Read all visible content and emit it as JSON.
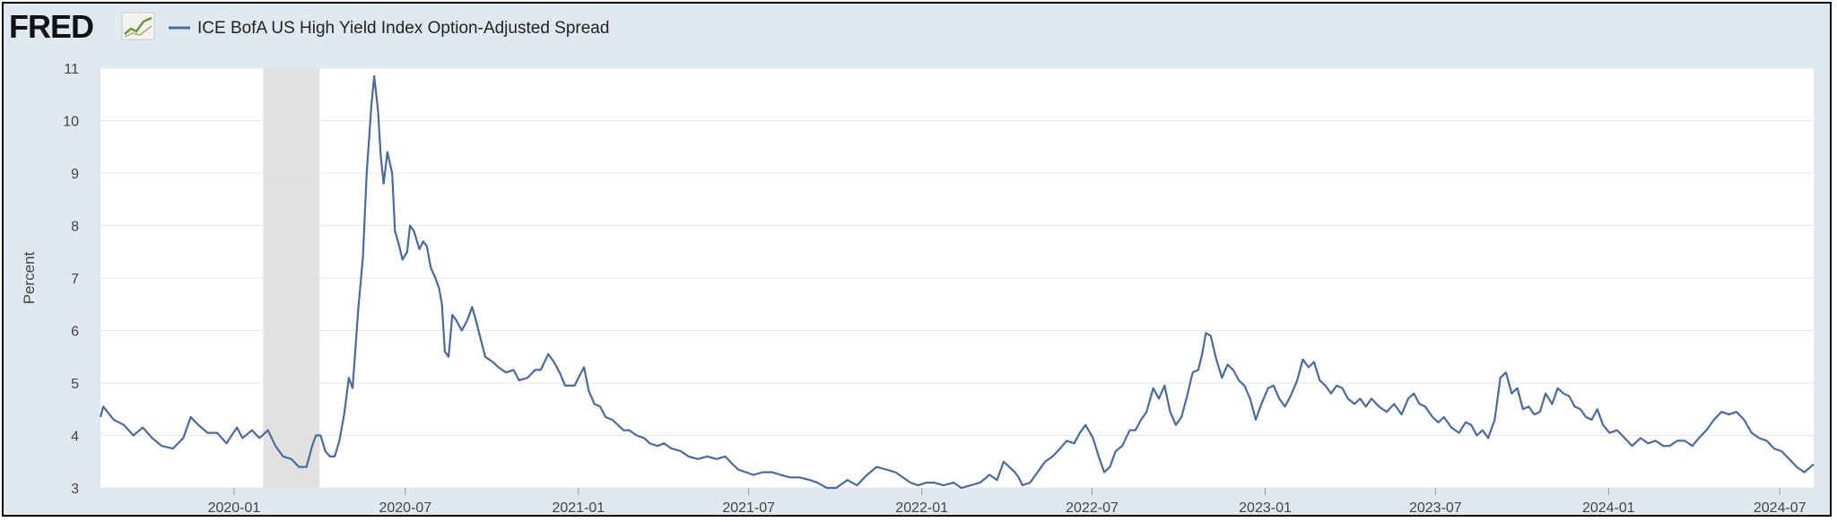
{
  "logo": {
    "text": "FRED"
  },
  "chart_data": {
    "type": "line",
    "title": "",
    "ylabel": "Percent",
    "xlabel": "",
    "ylim": [
      3,
      11
    ],
    "xlim": [
      "2019-08-12",
      "2024-08-06"
    ],
    "yticks": [
      3,
      4,
      5,
      6,
      7,
      8,
      9,
      10,
      11
    ],
    "xticks": [
      "2020-01",
      "2020-07",
      "2021-01",
      "2021-07",
      "2022-01",
      "2022-07",
      "2023-01",
      "2023-07",
      "2024-01",
      "2024-07"
    ],
    "grid": true,
    "legend": "top-left",
    "recession": {
      "start": "2020-02",
      "end": "2020-04"
    },
    "colors": {
      "line": "#4c6a9c",
      "recession": "#e1e1e1",
      "background": "#e1e9f0",
      "plot": "#ffffff"
    },
    "series": [
      {
        "name": "ICE BofA US High Yield Index Option-Adjusted Spread",
        "points": [
          [
            "2019-08-12",
            4.35
          ],
          [
            "2019-08-15",
            4.55
          ],
          [
            "2019-08-26",
            4.3
          ],
          [
            "2019-09-06",
            4.2
          ],
          [
            "2019-09-16",
            4.0
          ],
          [
            "2019-09-26",
            4.15
          ],
          [
            "2019-10-06",
            3.95
          ],
          [
            "2019-10-16",
            3.8
          ],
          [
            "2019-10-28",
            3.75
          ],
          [
            "2019-11-08",
            3.95
          ],
          [
            "2019-11-16",
            4.35
          ],
          [
            "2019-11-24",
            4.2
          ],
          [
            "2019-12-04",
            4.05
          ],
          [
            "2019-12-14",
            4.05
          ],
          [
            "2019-12-24",
            3.85
          ],
          [
            "2020-01-04",
            4.15
          ],
          [
            "2020-01-10",
            3.95
          ],
          [
            "2020-01-20",
            4.1
          ],
          [
            "2020-01-28",
            3.95
          ],
          [
            "2020-02-06",
            4.1
          ],
          [
            "2020-02-14",
            3.8
          ],
          [
            "2020-02-22",
            3.6
          ],
          [
            "2020-03-02",
            3.55
          ],
          [
            "2020-03-10",
            3.4
          ],
          [
            "2020-03-18",
            3.4
          ],
          [
            "2020-03-24",
            3.8
          ],
          [
            "2020-03-28",
            4.0
          ],
          [
            "2020-04-02",
            4.0
          ],
          [
            "2020-04-07",
            3.7
          ],
          [
            "2020-04-12",
            3.6
          ],
          [
            "2020-04-17",
            3.6
          ],
          [
            "2020-04-22",
            3.9
          ],
          [
            "2020-04-27",
            4.4
          ],
          [
            "2020-05-02",
            5.1
          ],
          [
            "2020-05-06",
            4.9
          ],
          [
            "2020-05-12",
            6.4
          ],
          [
            "2020-05-17",
            7.4
          ],
          [
            "2020-05-21",
            9.0
          ],
          [
            "2020-05-26",
            10.3
          ],
          [
            "2020-05-29",
            10.85
          ],
          [
            "2020-06-02",
            10.2
          ],
          [
            "2020-06-05",
            9.3
          ],
          [
            "2020-06-08",
            8.8
          ],
          [
            "2020-06-12",
            9.4
          ],
          [
            "2020-06-17",
            9.0
          ],
          [
            "2020-06-20",
            7.9
          ],
          [
            "2020-06-24",
            7.65
          ],
          [
            "2020-06-28",
            7.35
          ],
          [
            "2020-07-03",
            7.5
          ],
          [
            "2020-07-06",
            8.0
          ],
          [
            "2020-07-10",
            7.9
          ],
          [
            "2020-07-16",
            7.55
          ],
          [
            "2020-07-20",
            7.7
          ],
          [
            "2020-07-24",
            7.6
          ],
          [
            "2020-07-28",
            7.2
          ],
          [
            "2020-08-02",
            7.0
          ],
          [
            "2020-08-06",
            6.8
          ],
          [
            "2020-08-09",
            6.5
          ],
          [
            "2020-08-12",
            5.6
          ],
          [
            "2020-08-16",
            5.5
          ],
          [
            "2020-08-20",
            6.3
          ],
          [
            "2020-08-24",
            6.2
          ],
          [
            "2020-08-30",
            6.0
          ],
          [
            "2020-09-05",
            6.2
          ],
          [
            "2020-09-10",
            6.45
          ],
          [
            "2020-09-14",
            6.2
          ],
          [
            "2020-09-19",
            5.85
          ],
          [
            "2020-09-24",
            5.5
          ],
          [
            "2020-10-02",
            5.4
          ],
          [
            "2020-10-08",
            5.3
          ],
          [
            "2020-10-16",
            5.2
          ],
          [
            "2020-10-24",
            5.25
          ],
          [
            "2020-10-30",
            5.05
          ],
          [
            "2020-11-08",
            5.1
          ],
          [
            "2020-11-16",
            5.25
          ],
          [
            "2020-11-22",
            5.25
          ],
          [
            "2020-11-30",
            5.55
          ],
          [
            "2020-12-06",
            5.4
          ],
          [
            "2020-12-12",
            5.2
          ],
          [
            "2020-12-18",
            4.95
          ],
          [
            "2020-12-28",
            4.95
          ],
          [
            "2021-01-04",
            5.2
          ],
          [
            "2021-01-07",
            5.3
          ],
          [
            "2021-01-12",
            4.85
          ],
          [
            "2021-01-18",
            4.6
          ],
          [
            "2021-01-24",
            4.55
          ],
          [
            "2021-01-30",
            4.35
          ],
          [
            "2021-02-06",
            4.3
          ],
          [
            "2021-02-12",
            4.2
          ],
          [
            "2021-02-18",
            4.1
          ],
          [
            "2021-02-24",
            4.1
          ],
          [
            "2021-03-04",
            4.0
          ],
          [
            "2021-03-12",
            3.95
          ],
          [
            "2021-03-18",
            3.85
          ],
          [
            "2021-03-26",
            3.8
          ],
          [
            "2021-04-02",
            3.85
          ],
          [
            "2021-04-10",
            3.75
          ],
          [
            "2021-04-20",
            3.7
          ],
          [
            "2021-04-28",
            3.6
          ],
          [
            "2021-05-08",
            3.55
          ],
          [
            "2021-05-18",
            3.6
          ],
          [
            "2021-05-28",
            3.55
          ],
          [
            "2021-06-06",
            3.6
          ],
          [
            "2021-06-14",
            3.45
          ],
          [
            "2021-06-20",
            3.35
          ],
          [
            "2021-06-28",
            3.3
          ],
          [
            "2021-07-06",
            3.25
          ],
          [
            "2021-07-16",
            3.3
          ],
          [
            "2021-07-26",
            3.3
          ],
          [
            "2021-08-04",
            3.25
          ],
          [
            "2021-08-14",
            3.2
          ],
          [
            "2021-08-24",
            3.2
          ],
          [
            "2021-09-04",
            3.15
          ],
          [
            "2021-09-12",
            3.1
          ],
          [
            "2021-09-22",
            3.0
          ],
          [
            "2021-10-02",
            3.0
          ],
          [
            "2021-10-14",
            3.15
          ],
          [
            "2021-10-24",
            3.05
          ],
          [
            "2021-11-04",
            3.25
          ],
          [
            "2021-11-14",
            3.4
          ],
          [
            "2021-11-24",
            3.35
          ],
          [
            "2021-12-04",
            3.3
          ],
          [
            "2021-12-12",
            3.2
          ],
          [
            "2021-12-20",
            3.1
          ],
          [
            "2021-12-28",
            3.05
          ],
          [
            "2022-01-06",
            3.1
          ],
          [
            "2022-01-14",
            3.1
          ],
          [
            "2022-01-24",
            3.05
          ],
          [
            "2022-02-04",
            3.1
          ],
          [
            "2022-02-12",
            3.0
          ],
          [
            "2022-02-22",
            3.05
          ],
          [
            "2022-03-04",
            3.1
          ],
          [
            "2022-03-14",
            3.25
          ],
          [
            "2022-03-22",
            3.15
          ],
          [
            "2022-03-29",
            3.5
          ],
          [
            "2022-04-04",
            3.4
          ],
          [
            "2022-04-10",
            3.3
          ],
          [
            "2022-04-14",
            3.2
          ],
          [
            "2022-04-18",
            3.05
          ],
          [
            "2022-04-26",
            3.1
          ],
          [
            "2022-05-04",
            3.3
          ],
          [
            "2022-05-12",
            3.5
          ],
          [
            "2022-05-20",
            3.6
          ],
          [
            "2022-05-28",
            3.75
          ],
          [
            "2022-06-04",
            3.9
          ],
          [
            "2022-06-12",
            3.85
          ],
          [
            "2022-06-18",
            4.05
          ],
          [
            "2022-06-24",
            4.2
          ],
          [
            "2022-07-02",
            3.95
          ],
          [
            "2022-07-08",
            3.6
          ],
          [
            "2022-07-14",
            3.3
          ],
          [
            "2022-07-20",
            3.4
          ],
          [
            "2022-07-26",
            3.7
          ],
          [
            "2022-08-02",
            3.8
          ],
          [
            "2022-08-10",
            4.1
          ],
          [
            "2022-08-16",
            4.1
          ],
          [
            "2022-08-22",
            4.3
          ],
          [
            "2022-08-28",
            4.45
          ],
          [
            "2022-09-04",
            4.9
          ],
          [
            "2022-09-10",
            4.7
          ],
          [
            "2022-09-16",
            4.95
          ],
          [
            "2022-09-22",
            4.45
          ],
          [
            "2022-09-28",
            4.2
          ],
          [
            "2022-10-04",
            4.35
          ],
          [
            "2022-10-10",
            4.75
          ],
          [
            "2022-10-16",
            5.2
          ],
          [
            "2022-10-22",
            5.25
          ],
          [
            "2022-10-26",
            5.55
          ],
          [
            "2022-10-30",
            5.95
          ],
          [
            "2022-11-04",
            5.9
          ],
          [
            "2022-11-10",
            5.45
          ],
          [
            "2022-11-16",
            5.1
          ],
          [
            "2022-11-22",
            5.35
          ],
          [
            "2022-11-28",
            5.25
          ],
          [
            "2022-12-04",
            5.05
          ],
          [
            "2022-12-10",
            4.95
          ],
          [
            "2022-12-16",
            4.7
          ],
          [
            "2022-12-22",
            4.3
          ],
          [
            "2022-12-28",
            4.6
          ],
          [
            "2023-01-04",
            4.9
          ],
          [
            "2023-01-10",
            4.95
          ],
          [
            "2023-01-16",
            4.7
          ],
          [
            "2023-01-22",
            4.55
          ],
          [
            "2023-01-28",
            4.75
          ],
          [
            "2023-02-04",
            5.05
          ],
          [
            "2023-02-10",
            5.45
          ],
          [
            "2023-02-16",
            5.3
          ],
          [
            "2023-02-22",
            5.4
          ],
          [
            "2023-02-28",
            5.05
          ],
          [
            "2023-03-06",
            4.95
          ],
          [
            "2023-03-12",
            4.8
          ],
          [
            "2023-03-18",
            4.95
          ],
          [
            "2023-03-24",
            4.9
          ],
          [
            "2023-03-30",
            4.7
          ],
          [
            "2023-04-06",
            4.6
          ],
          [
            "2023-04-12",
            4.7
          ],
          [
            "2023-04-18",
            4.55
          ],
          [
            "2023-04-24",
            4.7
          ],
          [
            "2023-05-02",
            4.55
          ],
          [
            "2023-05-10",
            4.45
          ],
          [
            "2023-05-18",
            4.6
          ],
          [
            "2023-05-26",
            4.4
          ],
          [
            "2023-06-02",
            4.7
          ],
          [
            "2023-06-08",
            4.8
          ],
          [
            "2023-06-14",
            4.6
          ],
          [
            "2023-06-20",
            4.55
          ],
          [
            "2023-06-28",
            4.35
          ],
          [
            "2023-07-04",
            4.25
          ],
          [
            "2023-07-10",
            4.35
          ],
          [
            "2023-07-18",
            4.15
          ],
          [
            "2023-07-26",
            4.05
          ],
          [
            "2023-08-02",
            4.25
          ],
          [
            "2023-08-08",
            4.2
          ],
          [
            "2023-08-14",
            4.0
          ],
          [
            "2023-08-20",
            4.1
          ],
          [
            "2023-08-26",
            3.95
          ],
          [
            "2023-09-02",
            4.3
          ],
          [
            "2023-09-08",
            5.1
          ],
          [
            "2023-09-14",
            5.2
          ],
          [
            "2023-09-20",
            4.8
          ],
          [
            "2023-09-26",
            4.9
          ],
          [
            "2023-10-02",
            4.5
          ],
          [
            "2023-10-08",
            4.55
          ],
          [
            "2023-10-14",
            4.4
          ],
          [
            "2023-10-20",
            4.45
          ],
          [
            "2023-10-26",
            4.8
          ],
          [
            "2023-11-02",
            4.6
          ],
          [
            "2023-11-08",
            4.9
          ],
          [
            "2023-11-14",
            4.8
          ],
          [
            "2023-11-20",
            4.75
          ],
          [
            "2023-11-26",
            4.55
          ],
          [
            "2023-12-02",
            4.5
          ],
          [
            "2023-12-08",
            4.35
          ],
          [
            "2023-12-14",
            4.3
          ],
          [
            "2023-12-20",
            4.5
          ],
          [
            "2023-12-26",
            4.2
          ],
          [
            "2024-01-02",
            4.05
          ],
          [
            "2024-01-10",
            4.1
          ],
          [
            "2024-01-18",
            3.95
          ],
          [
            "2024-01-26",
            3.8
          ],
          [
            "2024-02-04",
            3.95
          ],
          [
            "2024-02-12",
            3.85
          ],
          [
            "2024-02-20",
            3.9
          ],
          [
            "2024-02-28",
            3.8
          ],
          [
            "2024-03-06",
            3.8
          ],
          [
            "2024-03-14",
            3.9
          ],
          [
            "2024-03-22",
            3.9
          ],
          [
            "2024-03-30",
            3.8
          ],
          [
            "2024-04-06",
            3.95
          ],
          [
            "2024-04-14",
            4.1
          ],
          [
            "2024-04-22",
            4.3
          ],
          [
            "2024-04-30",
            4.45
          ],
          [
            "2024-05-08",
            4.4
          ],
          [
            "2024-05-16",
            4.45
          ],
          [
            "2024-05-24",
            4.3
          ],
          [
            "2024-06-01",
            4.05
          ],
          [
            "2024-06-09",
            3.95
          ],
          [
            "2024-06-17",
            3.9
          ],
          [
            "2024-06-25",
            3.75
          ],
          [
            "2024-07-03",
            3.7
          ],
          [
            "2024-07-11",
            3.55
          ],
          [
            "2024-07-19",
            3.4
          ],
          [
            "2024-07-27",
            3.3
          ],
          [
            "2024-08-06",
            3.45
          ]
        ]
      }
    ]
  }
}
